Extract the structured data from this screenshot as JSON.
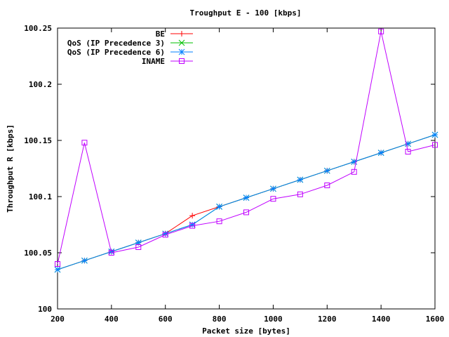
{
  "chart_data": {
    "type": "line",
    "title": "Troughput E - 100 [kbps]",
    "xlabel": "Packet size [bytes]",
    "ylabel": "Throughput R [kbps]",
    "xlim": [
      200,
      1600
    ],
    "ylim": [
      100,
      100.25
    ],
    "x_ticks": [
      200,
      400,
      600,
      800,
      1000,
      1200,
      1400,
      1600
    ],
    "y_ticks": [
      100,
      100.05,
      100.1,
      100.15,
      100.2,
      100.25
    ],
    "x_tick_labels": [
      "200",
      "400",
      "600",
      "800",
      "1000",
      "1200",
      "1400",
      "1600"
    ],
    "y_tick_labels": [
      "100",
      "100.05",
      "100.1",
      "100.15",
      "100.2",
      "100.25"
    ],
    "grid": false,
    "legend_position": "top-left",
    "x": [
      200,
      300,
      400,
      500,
      600,
      700,
      800,
      900,
      1000,
      1100,
      1200,
      1300,
      1400,
      1500,
      1600
    ],
    "series": [
      {
        "name": "BE",
        "color": "#ff0000",
        "marker": "plus",
        "values": [
          100.035,
          100.043,
          100.051,
          100.059,
          100.067,
          100.083,
          100.091,
          100.099,
          100.107,
          100.115,
          100.123,
          100.131,
          100.139,
          100.147,
          100.155
        ]
      },
      {
        "name": "QoS (IP Precedence 3)",
        "color": "#00c000",
        "marker": "x",
        "values": [
          100.035,
          100.043,
          100.051,
          100.059,
          100.067,
          100.075,
          100.091,
          100.099,
          100.107,
          100.115,
          100.123,
          100.131,
          100.139,
          100.147,
          100.155
        ]
      },
      {
        "name": "QoS (IP Precedence 6)",
        "color": "#0080ff",
        "marker": "star",
        "values": [
          100.035,
          100.043,
          100.051,
          100.059,
          100.067,
          100.075,
          100.091,
          100.099,
          100.107,
          100.115,
          100.123,
          100.131,
          100.139,
          100.147,
          100.155
        ]
      },
      {
        "name": "INAME",
        "color": "#c000ff",
        "marker": "square",
        "values": [
          100.04,
          100.148,
          100.05,
          100.055,
          100.066,
          100.074,
          100.078,
          100.086,
          100.098,
          100.102,
          100.11,
          100.122,
          100.247,
          100.14,
          100.146
        ]
      }
    ]
  }
}
